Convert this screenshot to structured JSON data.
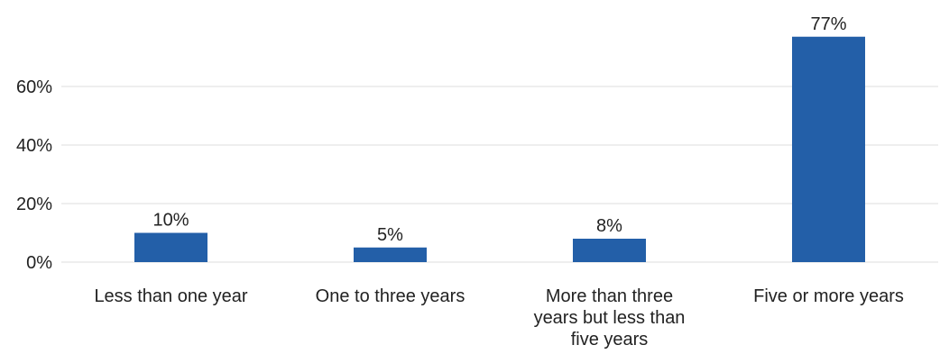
{
  "chart_data": {
    "type": "bar",
    "title": "",
    "xlabel": "",
    "ylabel": "",
    "categories": [
      [
        "Less than one year"
      ],
      [
        "One to three years"
      ],
      [
        "More than three",
        "years but less than",
        "five years"
      ],
      [
        "Five or more years"
      ]
    ],
    "values": [
      10,
      5,
      8,
      77
    ],
    "value_labels": [
      "10%",
      "5%",
      "8%",
      "77%"
    ],
    "yticks": [
      0,
      20,
      40,
      60
    ],
    "ytick_labels": [
      "0%",
      "20%",
      "40%",
      "60%"
    ],
    "ylim": [
      0,
      77
    ],
    "grid": true,
    "legend": "none",
    "colors": {
      "bar": "#235fa8",
      "grid": "#e3e3e3",
      "text": "#222222"
    }
  }
}
